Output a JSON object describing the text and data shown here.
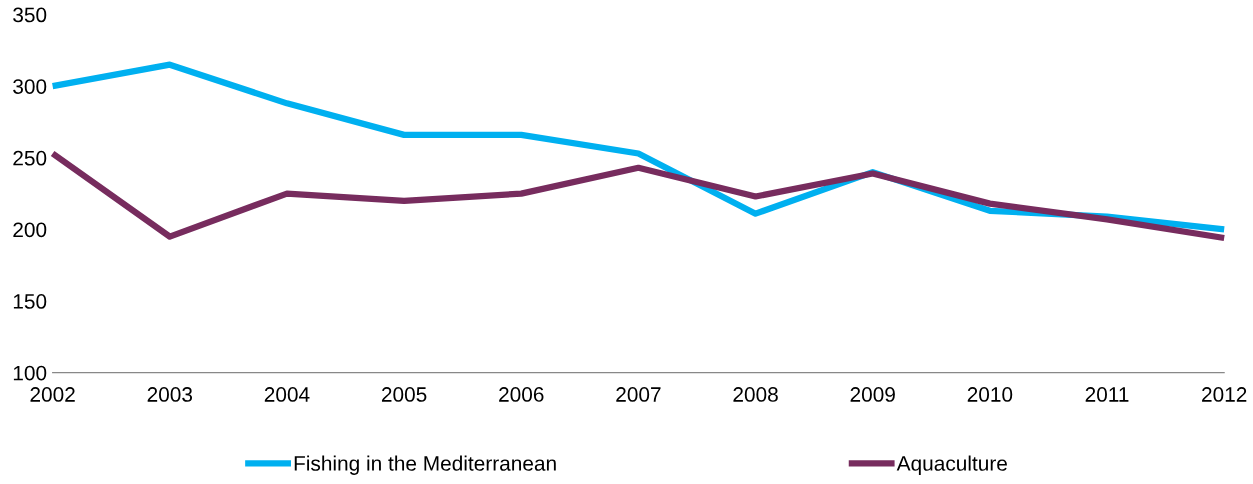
{
  "chart_data": {
    "type": "line",
    "categories": [
      "2002",
      "2003",
      "2004",
      "2005",
      "2006",
      "2007",
      "2008",
      "2009",
      "2010",
      "2011",
      "2012"
    ],
    "series": [
      {
        "name": "Fishing in the Mediterranean",
        "color": "#00b0f0",
        "values": [
          300,
          315,
          288,
          266,
          266,
          253,
          211,
          240,
          213,
          209,
          200
        ]
      },
      {
        "name": "Aquaculture",
        "color": "#772c5e",
        "values": [
          253,
          195,
          225,
          220,
          225,
          243,
          223,
          239,
          218,
          207,
          194
        ]
      }
    ],
    "ylim": [
      100,
      350
    ],
    "yticks": [
      100,
      150,
      200,
      250,
      300,
      350
    ],
    "grid": false,
    "legend": "bottom",
    "marker": "none",
    "line_style": "solid"
  }
}
